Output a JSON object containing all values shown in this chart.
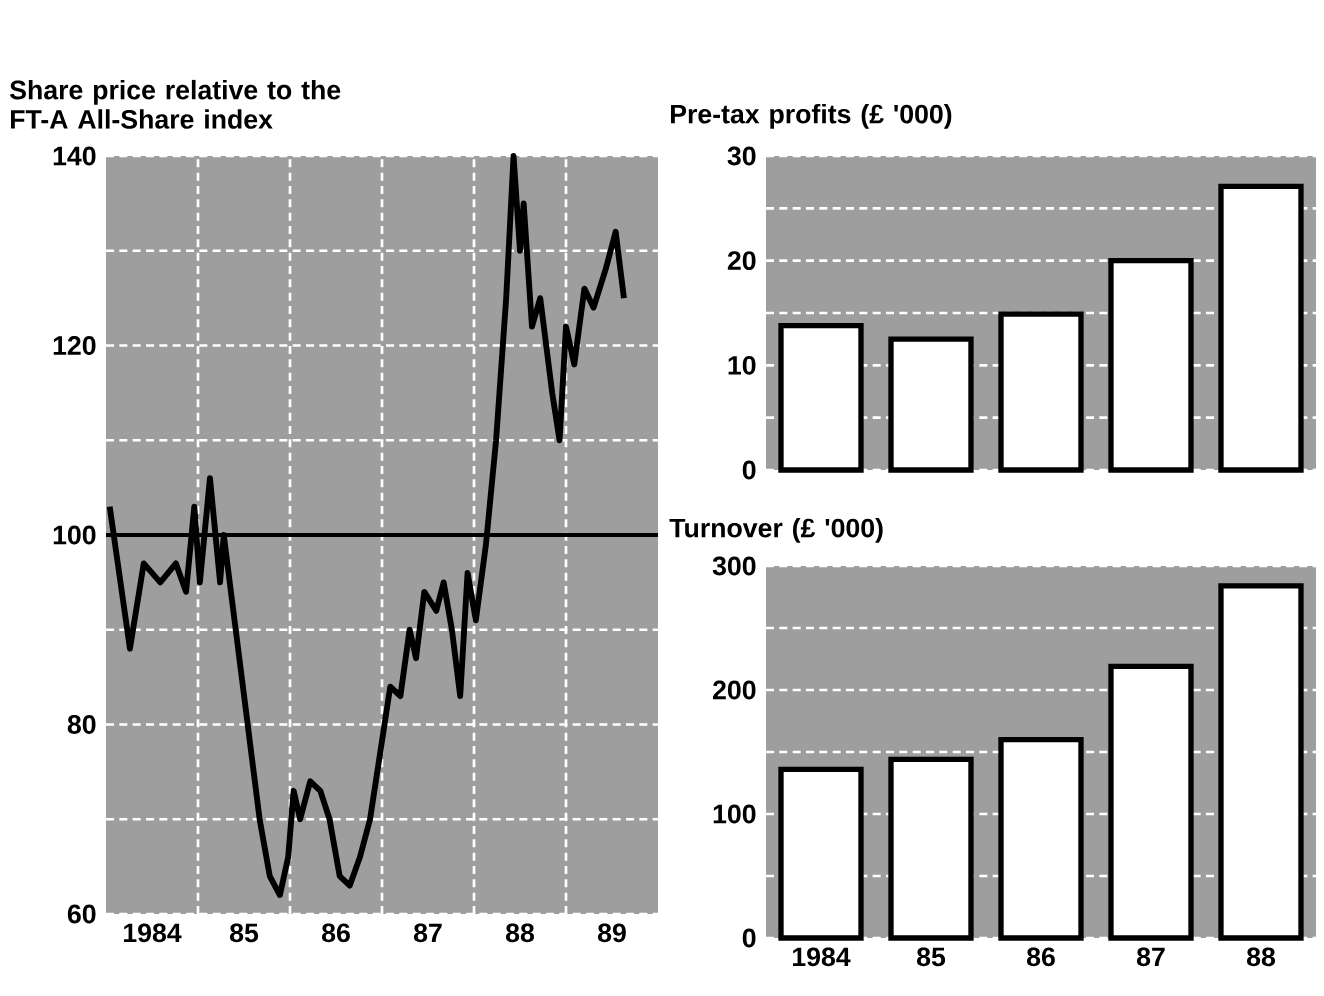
{
  "chart_data": [
    {
      "type": "line",
      "title": "Share price relative to the FT-A All-Share index",
      "color": "#000000",
      "grid": true,
      "x": [
        1983.54,
        1983.76,
        1983.91,
        1984.09,
        1984.26,
        1984.37,
        1984.46,
        1984.52,
        1984.63,
        1984.74,
        1984.78,
        1984.91,
        1985.04,
        1985.17,
        1985.28,
        1985.39,
        1985.48,
        1985.54,
        1985.61,
        1985.72,
        1985.83,
        1985.93,
        1986.04,
        1986.15,
        1986.26,
        1986.37,
        1986.48,
        1986.59,
        1986.7,
        1986.8,
        1986.87,
        1986.96,
        1987.09,
        1987.17,
        1987.26,
        1987.35,
        1987.43,
        1987.52,
        1987.63,
        1987.74,
        1987.85,
        1987.93,
        1988.0,
        1988.04,
        1988.13,
        1988.22,
        1988.35,
        1988.43,
        1988.5,
        1988.59,
        1988.7,
        1988.8,
        1988.93,
        1989.04,
        1989.13
      ],
      "values": [
        103,
        88,
        97,
        95,
        97,
        94,
        103,
        95,
        106,
        95,
        100,
        90,
        80,
        70,
        64,
        62,
        66,
        73,
        70,
        74,
        73,
        70,
        64,
        63,
        66,
        70,
        77,
        84,
        83,
        90,
        87,
        94,
        92,
        95,
        90,
        83,
        96,
        91,
        99,
        110,
        125,
        140,
        130,
        135,
        122,
        125,
        115,
        110,
        122,
        118,
        126,
        124,
        128,
        132,
        125
      ],
      "xlim": [
        1983.5,
        1989.5
      ],
      "ylim": [
        60,
        140
      ],
      "xticks": [
        {
          "value": 1984,
          "label": "1984"
        },
        {
          "value": 1985,
          "label": "85"
        },
        {
          "value": 1986,
          "label": "86"
        },
        {
          "value": 1987,
          "label": "87"
        },
        {
          "value": 1988,
          "label": "88"
        },
        {
          "value": 1989,
          "label": "89"
        },
        {
          "value": 1984.5,
          "label": null
        },
        {
          "value": 1985.5,
          "label": null
        },
        {
          "value": 1986.5,
          "label": null
        },
        {
          "value": 1987.5,
          "label": null
        },
        {
          "value": 1988.5,
          "label": null
        }
      ],
      "yticks": [
        60,
        80,
        100,
        120,
        140,
        {
          "value": 70,
          "label": null
        },
        {
          "value": 90,
          "label": null
        },
        {
          "value": 110,
          "label": null
        },
        {
          "value": 130,
          "label": null
        }
      ],
      "ref_lines": [
        {
          "axis": "y",
          "value": 100,
          "color": "#000000"
        }
      ]
    },
    {
      "type": "bar",
      "title": "Pre-tax profits (£ '000)",
      "color": "#ffffff",
      "grid": "y",
      "tick_labels": "y",
      "categories": [
        "1984",
        "85",
        "86",
        "87",
        "88"
      ],
      "values": [
        13.8,
        12.5,
        14.9,
        20.0,
        27.1
      ],
      "ylim": [
        0,
        30
      ],
      "yticks": [
        0,
        10,
        20,
        30,
        {
          "value": 5,
          "label": null
        },
        {
          "value": 15,
          "label": null
        },
        {
          "value": 25,
          "label": null
        }
      ]
    },
    {
      "type": "bar",
      "title": "Turnover (£ '000)",
      "color": "#ffffff",
      "grid": "y",
      "categories": [
        "1984",
        "85",
        "86",
        "87",
        "88"
      ],
      "values": [
        136,
        144,
        160,
        219,
        284
      ],
      "ylim": [
        0,
        300
      ],
      "yticks": [
        0,
        100,
        200,
        300,
        {
          "value": 50,
          "label": null
        },
        {
          "value": 150,
          "label": null
        },
        {
          "value": 250,
          "label": null
        }
      ]
    }
  ]
}
